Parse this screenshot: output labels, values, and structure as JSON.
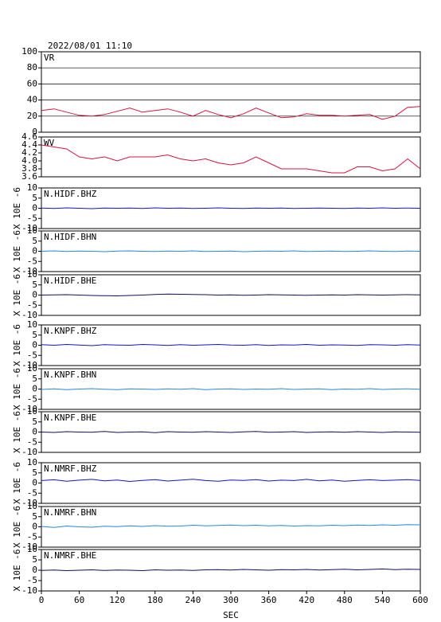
{
  "title": "2022/08/01 11:10",
  "chart_data": [
    {
      "type": "line",
      "label": "VR",
      "color": "#d4143c",
      "xlim": [
        0,
        600
      ],
      "ylim": [
        0,
        100
      ],
      "yticks": [
        0,
        20,
        40,
        60,
        80,
        100
      ],
      "grid": true,
      "x": [
        0,
        20,
        40,
        60,
        80,
        100,
        120,
        140,
        160,
        180,
        200,
        220,
        240,
        260,
        280,
        300,
        320,
        340,
        360,
        380,
        400,
        420,
        440,
        460,
        480,
        500,
        520,
        540,
        560,
        580,
        600
      ],
      "values": [
        27,
        29,
        25,
        21,
        20,
        22,
        26,
        30,
        25,
        27,
        29,
        25,
        20,
        27,
        22,
        18,
        23,
        30,
        24,
        18,
        19,
        23,
        21,
        21,
        20,
        21,
        22,
        16,
        20,
        31,
        32
      ]
    },
    {
      "type": "line",
      "label": "WV",
      "color": "#d4143c",
      "xlim": [
        0,
        600
      ],
      "ylim": [
        3.6,
        4.6
      ],
      "yticks": [
        3.6,
        3.8,
        {
          "value": 4,
          "label": "4.0"
        },
        4.2,
        4.4,
        4.6
      ],
      "grid": false,
      "x": [
        0,
        20,
        40,
        60,
        80,
        100,
        120,
        140,
        160,
        180,
        200,
        220,
        240,
        260,
        280,
        300,
        320,
        340,
        360,
        380,
        400,
        420,
        440,
        460,
        480,
        500,
        520,
        540,
        560,
        580,
        600
      ],
      "values": [
        4.4,
        4.35,
        4.3,
        4.1,
        4.05,
        4.1,
        4.0,
        4.1,
        4.1,
        4.1,
        4.15,
        4.05,
        4.0,
        4.05,
        3.95,
        3.9,
        3.95,
        4.1,
        3.95,
        3.8,
        3.8,
        3.8,
        3.75,
        3.7,
        3.7,
        3.85,
        3.85,
        3.75,
        3.8,
        4.05,
        3.8
      ]
    },
    {
      "type": "line",
      "label": "N.HIDF.BHZ",
      "ylabel": "X 10E -6",
      "color": "#1414c8",
      "xlim": [
        0,
        600
      ],
      "ylim": [
        -10,
        10
      ],
      "yticks": [
        -10,
        -5,
        0,
        5,
        10
      ],
      "x": [
        0,
        20,
        40,
        60,
        80,
        100,
        120,
        140,
        160,
        180,
        200,
        220,
        240,
        260,
        280,
        300,
        320,
        340,
        360,
        380,
        400,
        420,
        440,
        460,
        480,
        500,
        520,
        540,
        560,
        580,
        600
      ],
      "values": [
        0.1,
        -0.1,
        0.2,
        0,
        -0.2,
        0.1,
        0,
        0.1,
        -0.1,
        0.2,
        0,
        0.1,
        -0.1,
        0,
        0.2,
        0,
        -0.1,
        0.1,
        0,
        0.1,
        -0.1,
        0,
        0.1,
        0,
        -0.1,
        0.1,
        0,
        0.2,
        0,
        0.1,
        0
      ]
    },
    {
      "type": "line",
      "label": "N.HIDF.BHN",
      "ylabel": "X 10E -6",
      "color": "#2288e8",
      "xlim": [
        0,
        600
      ],
      "ylim": [
        -10,
        10
      ],
      "yticks": [
        -10,
        -5,
        0,
        5,
        10
      ],
      "x": [
        0,
        20,
        40,
        60,
        80,
        100,
        120,
        140,
        160,
        180,
        200,
        220,
        240,
        260,
        280,
        300,
        320,
        340,
        360,
        380,
        400,
        420,
        440,
        460,
        480,
        500,
        520,
        540,
        560,
        580,
        600
      ],
      "values": [
        0,
        0.2,
        -0.1,
        0.1,
        0,
        -0.2,
        0.1,
        0.2,
        0,
        -0.1,
        0.1,
        0,
        0.2,
        -0.1,
        0,
        0.1,
        -0.2,
        0,
        0.1,
        0,
        0.2,
        -0.1,
        0,
        0.1,
        -0.1,
        0,
        0.2,
        0,
        -0.1,
        0.1,
        0
      ]
    },
    {
      "type": "line",
      "label": "N.HIDF.BHE",
      "ylabel": "X 10E -6",
      "color": "#101058",
      "xlim": [
        0,
        600
      ],
      "ylim": [
        -10,
        10
      ],
      "yticks": [
        -10,
        -5,
        0,
        5,
        10
      ],
      "x": [
        0,
        20,
        40,
        60,
        80,
        100,
        120,
        140,
        160,
        180,
        200,
        220,
        240,
        260,
        280,
        300,
        320,
        340,
        360,
        380,
        400,
        420,
        440,
        460,
        480,
        500,
        520,
        540,
        560,
        580,
        600
      ],
      "values": [
        0,
        0.1,
        0.2,
        0,
        -0.2,
        -0.3,
        -0.4,
        -0.2,
        0,
        0.3,
        0.5,
        0.4,
        0.3,
        0.2,
        0,
        0.1,
        -0.1,
        0,
        0.2,
        0.1,
        0,
        -0.1,
        0,
        0.1,
        0,
        0.2,
        0.1,
        0,
        0.1,
        0.2,
        0.1
      ]
    },
    {
      "type": "line",
      "label": "N.KNPF.BHZ",
      "ylabel": "X 10E -6",
      "color": "#1414c8",
      "xlim": [
        0,
        600
      ],
      "ylim": [
        -10,
        10
      ],
      "yticks": [
        -10,
        -5,
        0,
        5,
        10
      ],
      "x": [
        0,
        20,
        40,
        60,
        80,
        100,
        120,
        140,
        160,
        180,
        200,
        220,
        240,
        260,
        280,
        300,
        320,
        340,
        360,
        380,
        400,
        420,
        440,
        460,
        480,
        500,
        520,
        540,
        560,
        580,
        600
      ],
      "values": [
        0.3,
        0,
        0.4,
        0.1,
        -0.2,
        0.3,
        0.1,
        0,
        0.4,
        0.2,
        -0.1,
        0.3,
        0,
        0.2,
        0.4,
        0.1,
        0,
        0.3,
        -0.1,
        0.2,
        0.1,
        0.4,
        0,
        0.2,
        0.1,
        -0.1,
        0.3,
        0.2,
        0,
        0.3,
        0.1
      ]
    },
    {
      "type": "line",
      "label": "N.KNPF.BHN",
      "ylabel": "X 10E -6",
      "color": "#2288e8",
      "xlim": [
        0,
        600
      ],
      "ylim": [
        -10,
        10
      ],
      "yticks": [
        -10,
        -5,
        0,
        5,
        10
      ],
      "x": [
        0,
        20,
        40,
        60,
        80,
        100,
        120,
        140,
        160,
        180,
        200,
        220,
        240,
        260,
        280,
        300,
        320,
        340,
        360,
        380,
        400,
        420,
        440,
        460,
        480,
        500,
        520,
        540,
        560,
        580,
        600
      ],
      "values": [
        -0.2,
        0.1,
        -0.3,
        0,
        0.2,
        -0.1,
        -0.3,
        0.1,
        0,
        -0.2,
        0.1,
        -0.1,
        0.2,
        -0.3,
        0,
        0.1,
        -0.2,
        0,
        -0.1,
        0.2,
        -0.2,
        0,
        0.1,
        -0.3,
        0,
        -0.1,
        0.2,
        -0.2,
        0,
        0.1,
        -0.1
      ]
    },
    {
      "type": "line",
      "label": "N.KNPF.BHE",
      "ylabel": "X 10E -6",
      "color": "#101058",
      "xlim": [
        0,
        600
      ],
      "ylim": [
        -10,
        10
      ],
      "yticks": [
        -10,
        -5,
        0,
        5,
        10
      ],
      "x": [
        0,
        20,
        40,
        60,
        80,
        100,
        120,
        140,
        160,
        180,
        200,
        220,
        240,
        260,
        280,
        300,
        320,
        340,
        360,
        380,
        400,
        420,
        440,
        460,
        480,
        500,
        520,
        540,
        560,
        580,
        600
      ],
      "values": [
        0,
        -0.2,
        0.2,
        0,
        -0.1,
        0.3,
        -0.2,
        0,
        0.1,
        -0.3,
        0.2,
        0,
        -0.1,
        0.2,
        0,
        -0.2,
        0.1,
        0.3,
        -0.1,
        0,
        0.2,
        -0.2,
        0,
        0.1,
        -0.1,
        0.2,
        0,
        -0.2,
        0.1,
        0,
        -0.1
      ]
    },
    {
      "type": "line",
      "label": "N.NMRF.BHZ",
      "ylabel": "X 10E -6",
      "color": "#1414c8",
      "xlim": [
        0,
        600
      ],
      "ylim": [
        -10,
        10
      ],
      "yticks": [
        -10,
        -5,
        0,
        5,
        10
      ],
      "x": [
        0,
        20,
        40,
        60,
        80,
        100,
        120,
        140,
        160,
        180,
        200,
        220,
        240,
        260,
        280,
        300,
        320,
        340,
        360,
        380,
        400,
        420,
        440,
        460,
        480,
        500,
        520,
        540,
        560,
        580,
        600
      ],
      "values": [
        1.2,
        1.6,
        0.9,
        1.4,
        1.8,
        1.1,
        1.5,
        0.8,
        1.3,
        1.7,
        1.0,
        1.4,
        1.9,
        1.2,
        0.9,
        1.5,
        1.3,
        1.7,
        1.0,
        1.4,
        1.2,
        1.8,
        1.1,
        1.5,
        0.9,
        1.3,
        1.6,
        1.2,
        1.4,
        1.7,
        1.3
      ]
    },
    {
      "type": "line",
      "label": "N.NMRF.BHN",
      "ylabel": "X 10E -6",
      "color": "#2288e8",
      "xlim": [
        0,
        600
      ],
      "ylim": [
        -10,
        10
      ],
      "yticks": [
        -10,
        -5,
        0,
        5,
        10
      ],
      "x": [
        0,
        20,
        40,
        60,
        80,
        100,
        120,
        140,
        160,
        180,
        200,
        220,
        240,
        260,
        280,
        300,
        320,
        340,
        360,
        380,
        400,
        420,
        440,
        460,
        480,
        500,
        520,
        540,
        560,
        580,
        600
      ],
      "values": [
        0.2,
        -0.3,
        0.4,
        0,
        -0.2,
        0.3,
        0.1,
        0.5,
        0.2,
        0.6,
        0.3,
        0.4,
        0.8,
        0.5,
        0.7,
        0.9,
        0.6,
        0.8,
        0.5,
        0.7,
        0.4,
        0.6,
        0.5,
        0.8,
        0.6,
        0.9,
        0.7,
        1.0,
        0.8,
        1.1,
        1.0
      ]
    },
    {
      "type": "line",
      "label": "N.NMRF.BHE",
      "ylabel": "X 10E -6",
      "color": "#101058",
      "xlim": [
        0,
        600
      ],
      "ylim": [
        -10,
        10
      ],
      "yticks": [
        -10,
        -5,
        0,
        5,
        10
      ],
      "x": [
        0,
        20,
        40,
        60,
        80,
        100,
        120,
        140,
        160,
        180,
        200,
        220,
        240,
        260,
        280,
        300,
        320,
        340,
        360,
        380,
        400,
        420,
        440,
        460,
        480,
        500,
        520,
        540,
        560,
        580,
        600
      ],
      "values": [
        -0.1,
        0.1,
        -0.2,
        0,
        0.2,
        -0.1,
        0.1,
        0,
        -0.2,
        0.2,
        0,
        0.1,
        -0.1,
        0.2,
        0.3,
        0.1,
        0.4,
        0.2,
        0,
        0.3,
        0.2,
        0.4,
        0.1,
        0.3,
        0.5,
        0.2,
        0.4,
        0.6,
        0.3,
        0.5,
        0.4
      ],
      "xticks": [
        0,
        60,
        120,
        180,
        240,
        300,
        360,
        420,
        480,
        540,
        600
      ],
      "xlabel": "SEC"
    }
  ]
}
